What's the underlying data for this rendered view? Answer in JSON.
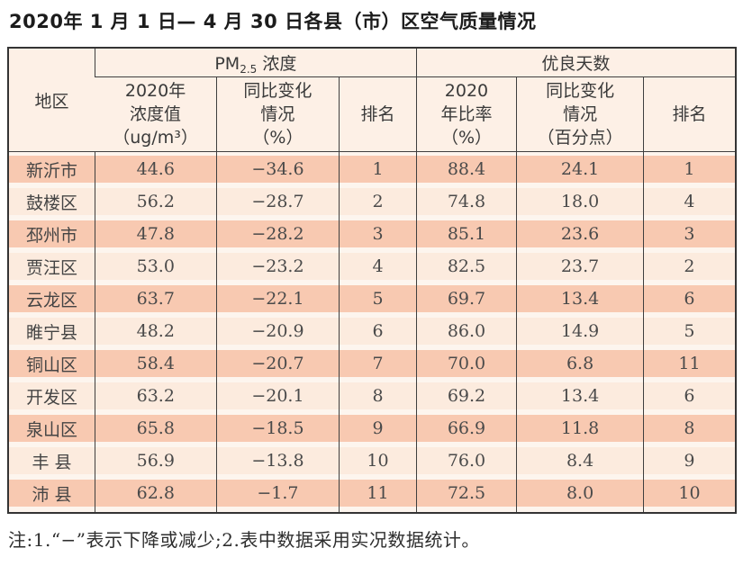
{
  "page_title": "2020年 1 月 1 日— 4 月 30 日各县（市）区空气质量情况",
  "table": {
    "region_header": "地区",
    "pm_group": {
      "prefix": "PM",
      "sub": "2.5",
      "suffix": " 浓度"
    },
    "days_group_label": "优良天数",
    "sub_headers": {
      "pm_value": "2020年\n浓度值\n（ug/m³）",
      "pm_change": "同比变化\n情况\n（%）",
      "pm_rank": "排名",
      "days_ratio": "2020\n年比率\n（%）",
      "days_change": "同比变化\n情况\n（百分点）",
      "days_rank": "排名"
    },
    "rows": [
      {
        "region": "新沂市",
        "pm_value": "44.6",
        "pm_change": "−34.6",
        "pm_rank": "1",
        "days_ratio": "88.4",
        "days_change": "24.1",
        "days_rank": "1"
      },
      {
        "region": "鼓楼区",
        "pm_value": "56.2",
        "pm_change": "−28.7",
        "pm_rank": "2",
        "days_ratio": "74.8",
        "days_change": "18.0",
        "days_rank": "4"
      },
      {
        "region": "邳州市",
        "pm_value": "47.8",
        "pm_change": "−28.2",
        "pm_rank": "3",
        "days_ratio": "85.1",
        "days_change": "23.6",
        "days_rank": "3"
      },
      {
        "region": "贾汪区",
        "pm_value": "53.0",
        "pm_change": "−23.2",
        "pm_rank": "4",
        "days_ratio": "82.5",
        "days_change": "23.7",
        "days_rank": "2"
      },
      {
        "region": "云龙区",
        "pm_value": "63.7",
        "pm_change": "−22.1",
        "pm_rank": "5",
        "days_ratio": "69.7",
        "days_change": "13.4",
        "days_rank": "6"
      },
      {
        "region": "睢宁县",
        "pm_value": "48.2",
        "pm_change": "−20.9",
        "pm_rank": "6",
        "days_ratio": "86.0",
        "days_change": "14.9",
        "days_rank": "5"
      },
      {
        "region": "铜山区",
        "pm_value": "58.4",
        "pm_change": "−20.7",
        "pm_rank": "7",
        "days_ratio": "70.0",
        "days_change": "6.8",
        "days_rank": "11"
      },
      {
        "region": "开发区",
        "pm_value": "63.2",
        "pm_change": "−20.1",
        "pm_rank": "8",
        "days_ratio": "69.2",
        "days_change": "13.4",
        "days_rank": "6"
      },
      {
        "region": "泉山区",
        "pm_value": "65.8",
        "pm_change": "−18.5",
        "pm_rank": "9",
        "days_ratio": "66.9",
        "days_change": "11.8",
        "days_rank": "8"
      },
      {
        "region": "丰 县",
        "pm_value": "56.9",
        "pm_change": "−13.8",
        "pm_rank": "10",
        "days_ratio": "76.0",
        "days_change": "8.4",
        "days_rank": "9"
      },
      {
        "region": "沛 县",
        "pm_value": "62.8",
        "pm_change": "−1.7",
        "pm_rank": "11",
        "days_ratio": "72.5",
        "days_change": "8.0",
        "days_rank": "10"
      }
    ]
  },
  "footnote": "注:1.“−”表示下降或减少;2.表中数据采用实况数据统计。"
}
